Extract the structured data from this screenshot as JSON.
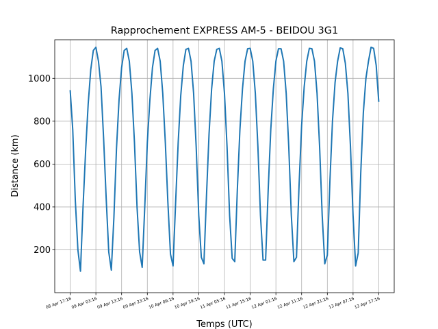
{
  "chart_data": {
    "type": "line",
    "title": "Rapprochement EXPRESS AM-5 - BEIDOU 3G1",
    "xlabel": "Temps (UTC)",
    "ylabel": "Distance (km)",
    "ylim": [
      0,
      1180
    ],
    "y_ticks": [
      200,
      400,
      600,
      800,
      1000
    ],
    "x_tick_labels": [
      "08 Apr 17:16",
      "09 Apr 03:16",
      "09 Apr 13:16",
      "09 Apr 23:16",
      "10 Apr 09:16",
      "10 Apr 19:16",
      "11 Apr 05:16",
      "11 Apr 15:16",
      "12 Apr 01:16",
      "12 Apr 11:16",
      "12 Apr 21:16",
      "13 Apr 07:16",
      "13 Apr 17:16"
    ],
    "grid": "vertical and horizontal at ticks",
    "legend": "none",
    "color": "#1f77b4",
    "x_unit": "hours after 08 Apr 17:16 UTC",
    "series": [
      {
        "x": [
          0,
          1,
          2,
          3,
          4,
          5,
          6,
          7,
          8,
          9,
          10,
          11,
          12,
          13,
          14,
          15,
          16,
          17,
          18,
          19,
          20,
          21,
          22,
          23,
          24,
          25,
          26,
          27,
          28,
          29,
          30,
          31,
          32,
          33,
          34,
          35,
          36,
          37,
          38,
          39,
          40,
          41,
          42,
          43,
          44,
          45,
          46,
          47,
          48,
          49,
          50,
          51,
          52,
          53,
          54,
          55,
          56,
          57,
          58,
          59,
          60,
          61,
          62,
          63,
          64,
          65,
          66,
          67,
          68,
          69,
          70,
          71,
          72,
          73,
          74,
          75,
          76,
          77,
          78,
          79,
          80,
          81,
          82,
          83,
          84,
          85,
          86,
          87,
          88,
          89,
          90,
          91,
          92,
          93,
          94,
          95,
          96,
          97,
          98,
          99,
          100,
          101,
          102,
          103,
          104,
          105,
          106,
          107,
          108,
          109,
          110,
          111,
          112,
          113,
          114,
          115,
          116,
          117,
          118,
          119,
          120
        ],
        "y": [
          945,
          760,
          430,
          200,
          100,
          400,
          660,
          880,
          1040,
          1130,
          1145,
          1080,
          960,
          720,
          440,
          190,
          105,
          350,
          670,
          900,
          1050,
          1130,
          1140,
          1080,
          930,
          700,
          400,
          190,
          118,
          400,
          700,
          900,
          1050,
          1130,
          1140,
          1080,
          930,
          700,
          420,
          180,
          125,
          420,
          700,
          920,
          1060,
          1135,
          1140,
          1080,
          930,
          680,
          360,
          165,
          135,
          450,
          740,
          950,
          1080,
          1135,
          1140,
          1080,
          930,
          680,
          360,
          160,
          145,
          480,
          760,
          950,
          1080,
          1138,
          1140,
          1080,
          930,
          680,
          360,
          152,
          152,
          480,
          760,
          950,
          1080,
          1138,
          1138,
          1080,
          930,
          680,
          360,
          145,
          165,
          500,
          780,
          960,
          1080,
          1140,
          1138,
          1080,
          930,
          680,
          360,
          135,
          175,
          520,
          800,
          980,
          1080,
          1142,
          1138,
          1070,
          930,
          680,
          360,
          125,
          185,
          560,
          840,
          1000,
          1080,
          1145,
          1140,
          1060,
          890
        ]
      }
    ]
  }
}
